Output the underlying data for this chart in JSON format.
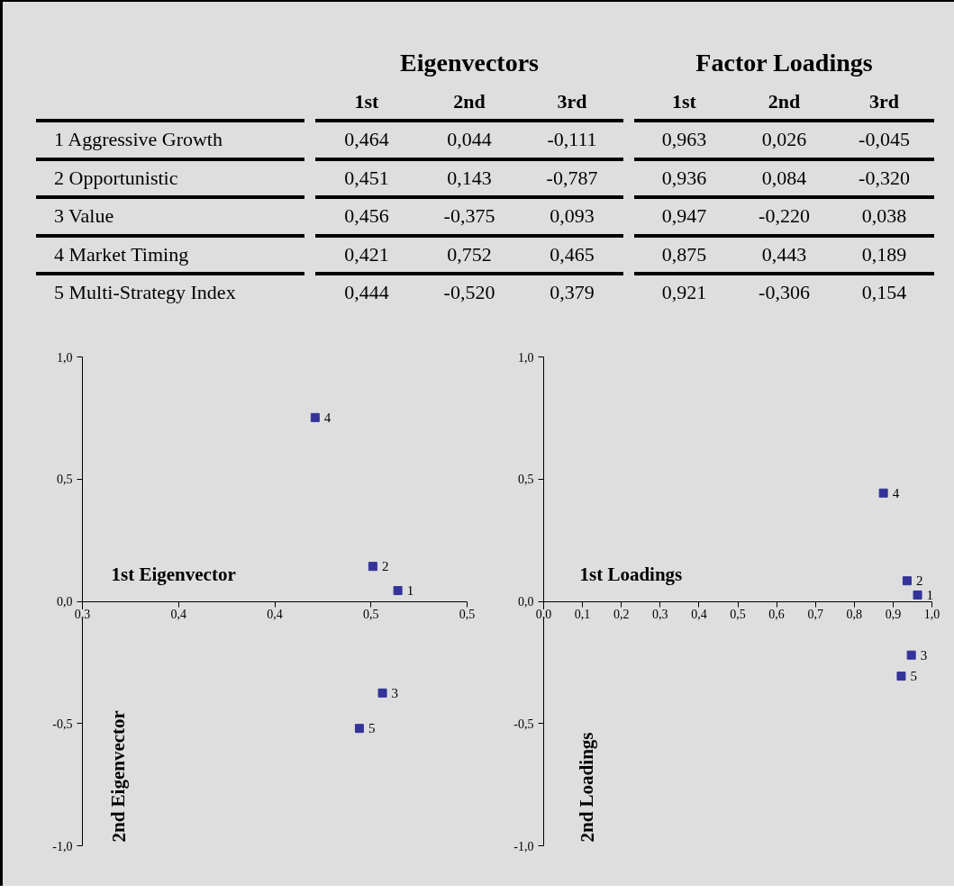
{
  "chart_data": [
    {
      "type": "other",
      "annotations": [
        "Eigenvectors",
        "Factor Loadings",
        "1st",
        "2nd",
        "3rd",
        "1st",
        "2nd",
        "3rd",
        "1",
        "Aggressive Growth",
        "0,464",
        "0,044",
        "-0,111",
        "0,963",
        "0,026",
        "-0,045",
        "2",
        "Opportunistic",
        "0,451",
        "0,143",
        "-0,787",
        "0,936",
        "0,084",
        "-0,320",
        "3",
        "Value",
        "0,456",
        "-0,375",
        "0,093",
        "0,947",
        "-0,220",
        "0,038",
        "4",
        "Market Timing",
        "0,421",
        "0,752",
        "0,465",
        "0,875",
        "0,443",
        "0,189",
        "5",
        "Multi-Strategy Index",
        "0,444",
        "-0,520",
        "0,379",
        "0,921",
        "-0,306",
        "0,154"
      ]
    },
    {
      "type": "scatter",
      "xlabel": "1st Eigenvector",
      "ylabel": "2nd Eigenvector",
      "marker": "square",
      "xlim": [
        0.3,
        0.5
      ],
      "ylim": [
        -1.0,
        1.0
      ],
      "xticks": [
        {
          "value": 0.3,
          "label": "0,3"
        },
        {
          "value": 0.35,
          "label": "0,4"
        },
        {
          "value": 0.4,
          "label": "0,4"
        },
        {
          "value": 0.45,
          "label": "0,5"
        },
        {
          "value": 0.5,
          "label": "0,5"
        }
      ],
      "yticks": [
        {
          "value": -1.0,
          "label": "-1,0"
        },
        {
          "value": -0.5,
          "label": "-0,5"
        },
        {
          "value": 0.0,
          "label": "0,0"
        },
        {
          "value": 0.5,
          "label": "0,5"
        },
        {
          "value": 1.0,
          "label": "1,0"
        }
      ],
      "series": [
        {
          "color": "#333399",
          "x": [
            0.464,
            0.451,
            0.456,
            0.421,
            0.444
          ],
          "values": [
            0.044,
            0.143,
            -0.375,
            0.752,
            -0.52
          ]
        }
      ],
      "annotations": [
        {
          "text": "1",
          "x": 0.464,
          "y": 0.044
        },
        {
          "text": "2",
          "x": 0.451,
          "y": 0.143
        },
        {
          "text": "3",
          "x": 0.456,
          "y": -0.375
        },
        {
          "text": "4",
          "x": 0.421,
          "y": 0.752
        },
        {
          "text": "5",
          "x": 0.444,
          "y": -0.52
        }
      ]
    },
    {
      "type": "scatter",
      "xlabel": "1st Loadings",
      "ylabel": "2nd Loadings",
      "marker": "square",
      "xlim": [
        0.0,
        1.0
      ],
      "ylim": [
        -1.0,
        1.0
      ],
      "xticks": [
        {
          "value": 0.0,
          "label": "0,0"
        },
        {
          "value": 0.1,
          "label": "0,1"
        },
        {
          "value": 0.2,
          "label": "0,2"
        },
        {
          "value": 0.3,
          "label": "0,3"
        },
        {
          "value": 0.4,
          "label": "0,4"
        },
        {
          "value": 0.5,
          "label": "0,5"
        },
        {
          "value": 0.6,
          "label": "0,6"
        },
        {
          "value": 0.7,
          "label": "0,7"
        },
        {
          "value": 0.8,
          "label": "0,8"
        },
        {
          "value": 0.9,
          "label": "0,9"
        },
        {
          "value": 1.0,
          "label": "1,0"
        }
      ],
      "yticks": [
        {
          "value": -1.0,
          "label": "-1,0"
        },
        {
          "value": -0.5,
          "label": "-0,5"
        },
        {
          "value": 0.0,
          "label": "0,0"
        },
        {
          "value": 0.5,
          "label": "0,5"
        },
        {
          "value": 1.0,
          "label": "1,0"
        }
      ],
      "series": [
        {
          "color": "#333399",
          "x": [
            0.963,
            0.936,
            0.947,
            0.875,
            0.921
          ],
          "values": [
            0.026,
            0.084,
            -0.22,
            0.443,
            -0.306
          ]
        }
      ],
      "annotations": [
        {
          "text": "1",
          "x": 0.963,
          "y": 0.026
        },
        {
          "text": "2",
          "x": 0.936,
          "y": 0.084
        },
        {
          "text": "3",
          "x": 0.947,
          "y": -0.22
        },
        {
          "text": "4",
          "x": 0.875,
          "y": 0.443
        },
        {
          "text": "5",
          "x": 0.921,
          "y": -0.306
        }
      ]
    }
  ]
}
